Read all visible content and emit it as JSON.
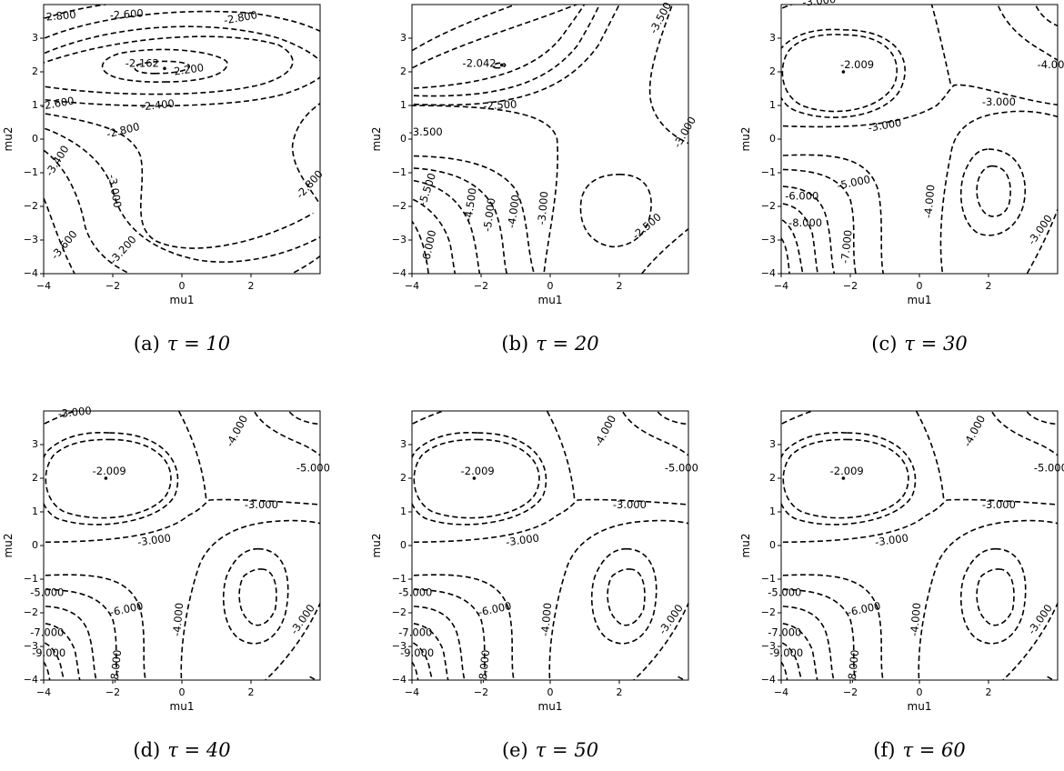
{
  "chart_data": [
    {
      "type": "contour",
      "caption_prefix": "(a)",
      "caption_tau": "τ = 10",
      "xlabel": "mu1",
      "ylabel": "mu2",
      "xlim": [
        -4,
        4
      ],
      "ylim": [
        -4,
        4
      ],
      "xticks": [
        "−4",
        "−2",
        "0",
        "2"
      ],
      "yticks": [
        "−4",
        "−3",
        "−2",
        "−1",
        "0",
        "1",
        "2",
        "3"
      ],
      "contour_levels": [
        "-2.162",
        "-2.200",
        "-2.400",
        "-2.600",
        "-2.800",
        "-3.000",
        "-3.200",
        "-3.400",
        "-3.600"
      ],
      "level_labels": [
        "-2.800",
        "-2.600",
        "-2.800",
        "-2.162",
        "-2.200",
        "-2.600",
        "-2.400",
        "-2.800",
        "-3.400",
        "-3.000",
        "-2.800",
        "-3.600",
        "-3.200"
      ],
      "maximum": {
        "x": -0.5,
        "y": 2.1,
        "value": "-2.162"
      }
    },
    {
      "type": "contour",
      "caption_prefix": "(b)",
      "caption_tau": "τ = 20",
      "xlabel": "mu1",
      "ylabel": "mu2",
      "xlim": [
        -4,
        4
      ],
      "ylim": [
        -4,
        4
      ],
      "xticks": [
        "−4",
        "−2",
        "0",
        "2"
      ],
      "yticks": [
        "−4",
        "−3",
        "−2",
        "−1",
        "0",
        "1",
        "2",
        "3"
      ],
      "contour_levels": [
        "-2.042",
        "-2.500",
        "-3.000",
        "-3.500",
        "-4.000",
        "-4.500",
        "-5.000",
        "-5.500",
        "-6.000"
      ],
      "level_labels": [
        "-3.500",
        "-2.042",
        "-2.500",
        "-3.000",
        "-3.500",
        "-5.500",
        "-4.500",
        "-5.000",
        "-4.000",
        "-3.000",
        "-6.000",
        "-2.500"
      ],
      "maximum": {
        "x": -1.4,
        "y": 2.2,
        "value": "-2.042"
      }
    },
    {
      "type": "contour",
      "caption_prefix": "(c)",
      "caption_tau": "τ = 30",
      "xlabel": "mu1",
      "ylabel": "mu2",
      "xlim": [
        -4,
        4
      ],
      "ylim": [
        -4,
        4
      ],
      "xticks": [
        "−4",
        "−2",
        "0",
        "2"
      ],
      "yticks": [
        "−4",
        "−3",
        "−2",
        "−1",
        "0",
        "1",
        "2",
        "3"
      ],
      "contour_levels": [
        "-2.009",
        "-3.000",
        "-4.000",
        "-5.000",
        "-6.000",
        "-7.000",
        "-8.000"
      ],
      "level_labels": [
        "-3.000",
        "-2.009",
        "-4.000",
        "-3.000",
        "-3.000",
        "-5.000",
        "-6.000",
        "-4.000",
        "-8.000",
        "-7.000",
        "-3.000"
      ],
      "maximum": {
        "x": -2.2,
        "y": 2.0,
        "value": "-2.009"
      }
    },
    {
      "type": "contour",
      "caption_prefix": "(d)",
      "caption_tau": "τ = 40",
      "xlabel": "mu1",
      "ylabel": "mu2",
      "xlim": [
        -4,
        4
      ],
      "ylim": [
        -4,
        4
      ],
      "xticks": [
        "−4",
        "−2",
        "0",
        "2"
      ],
      "yticks": [
        "−4",
        "−3",
        "−2",
        "−1",
        "0",
        "1",
        "2",
        "3"
      ],
      "contour_levels": [
        "-2.009",
        "-3.000",
        "-4.000",
        "-5.000",
        "-6.000",
        "-7.000",
        "-8.000",
        "-9.000"
      ],
      "level_labels": [
        "-3.000",
        "-4.000",
        "-5.000",
        "-2.009",
        "-3.000",
        "-3.000",
        "-5.000",
        "-6.000",
        "-7.000",
        "-4.000",
        "-9.000",
        "-8.000",
        "-3.000"
      ],
      "maximum": {
        "x": -2.2,
        "y": 2.0,
        "value": "-2.009"
      }
    },
    {
      "type": "contour",
      "caption_prefix": "(e)",
      "caption_tau": "τ = 50",
      "xlabel": "mu1",
      "ylabel": "mu2",
      "xlim": [
        -4,
        4
      ],
      "ylim": [
        -4,
        4
      ],
      "xticks": [
        "−4",
        "−2",
        "0",
        "2"
      ],
      "yticks": [
        "−4",
        "−3",
        "−2",
        "−1",
        "0",
        "1",
        "2",
        "3"
      ],
      "contour_levels": [
        "-2.009",
        "-3.000",
        "-4.000",
        "-5.000",
        "-6.000",
        "-7.000",
        "-8.000",
        "-9.000"
      ],
      "level_labels": [
        "-4.000",
        "-5.000",
        "-2.009",
        "-3.000",
        "-3.000",
        "-5.000",
        "-6.000",
        "-7.000",
        "-4.000",
        "-9.000",
        "-8.000",
        "-3.000"
      ],
      "maximum": {
        "x": -2.2,
        "y": 2.0,
        "value": "-2.009"
      }
    },
    {
      "type": "contour",
      "caption_prefix": "(f)",
      "caption_tau": "τ = 60",
      "xlabel": "mu1",
      "ylabel": "mu2",
      "xlim": [
        -4,
        4
      ],
      "ylim": [
        -4,
        4
      ],
      "xticks": [
        "−4",
        "−2",
        "0",
        "2"
      ],
      "yticks": [
        "−4",
        "−3",
        "−2",
        "−1",
        "0",
        "1",
        "2",
        "3"
      ],
      "contour_levels": [
        "-2.009",
        "-3.000",
        "-4.000",
        "-5.000",
        "-6.000",
        "-7.000",
        "-8.000",
        "-9.000"
      ],
      "level_labels": [
        "-4.000",
        "-5.000",
        "-2.009",
        "-3.000",
        "-3.000",
        "-5.000",
        "-6.000",
        "-7.000",
        "-4.000",
        "-9.000",
        "-8.000",
        "-3.000"
      ],
      "maximum": {
        "x": -2.2,
        "y": 2.0,
        "value": "-2.009"
      }
    }
  ]
}
